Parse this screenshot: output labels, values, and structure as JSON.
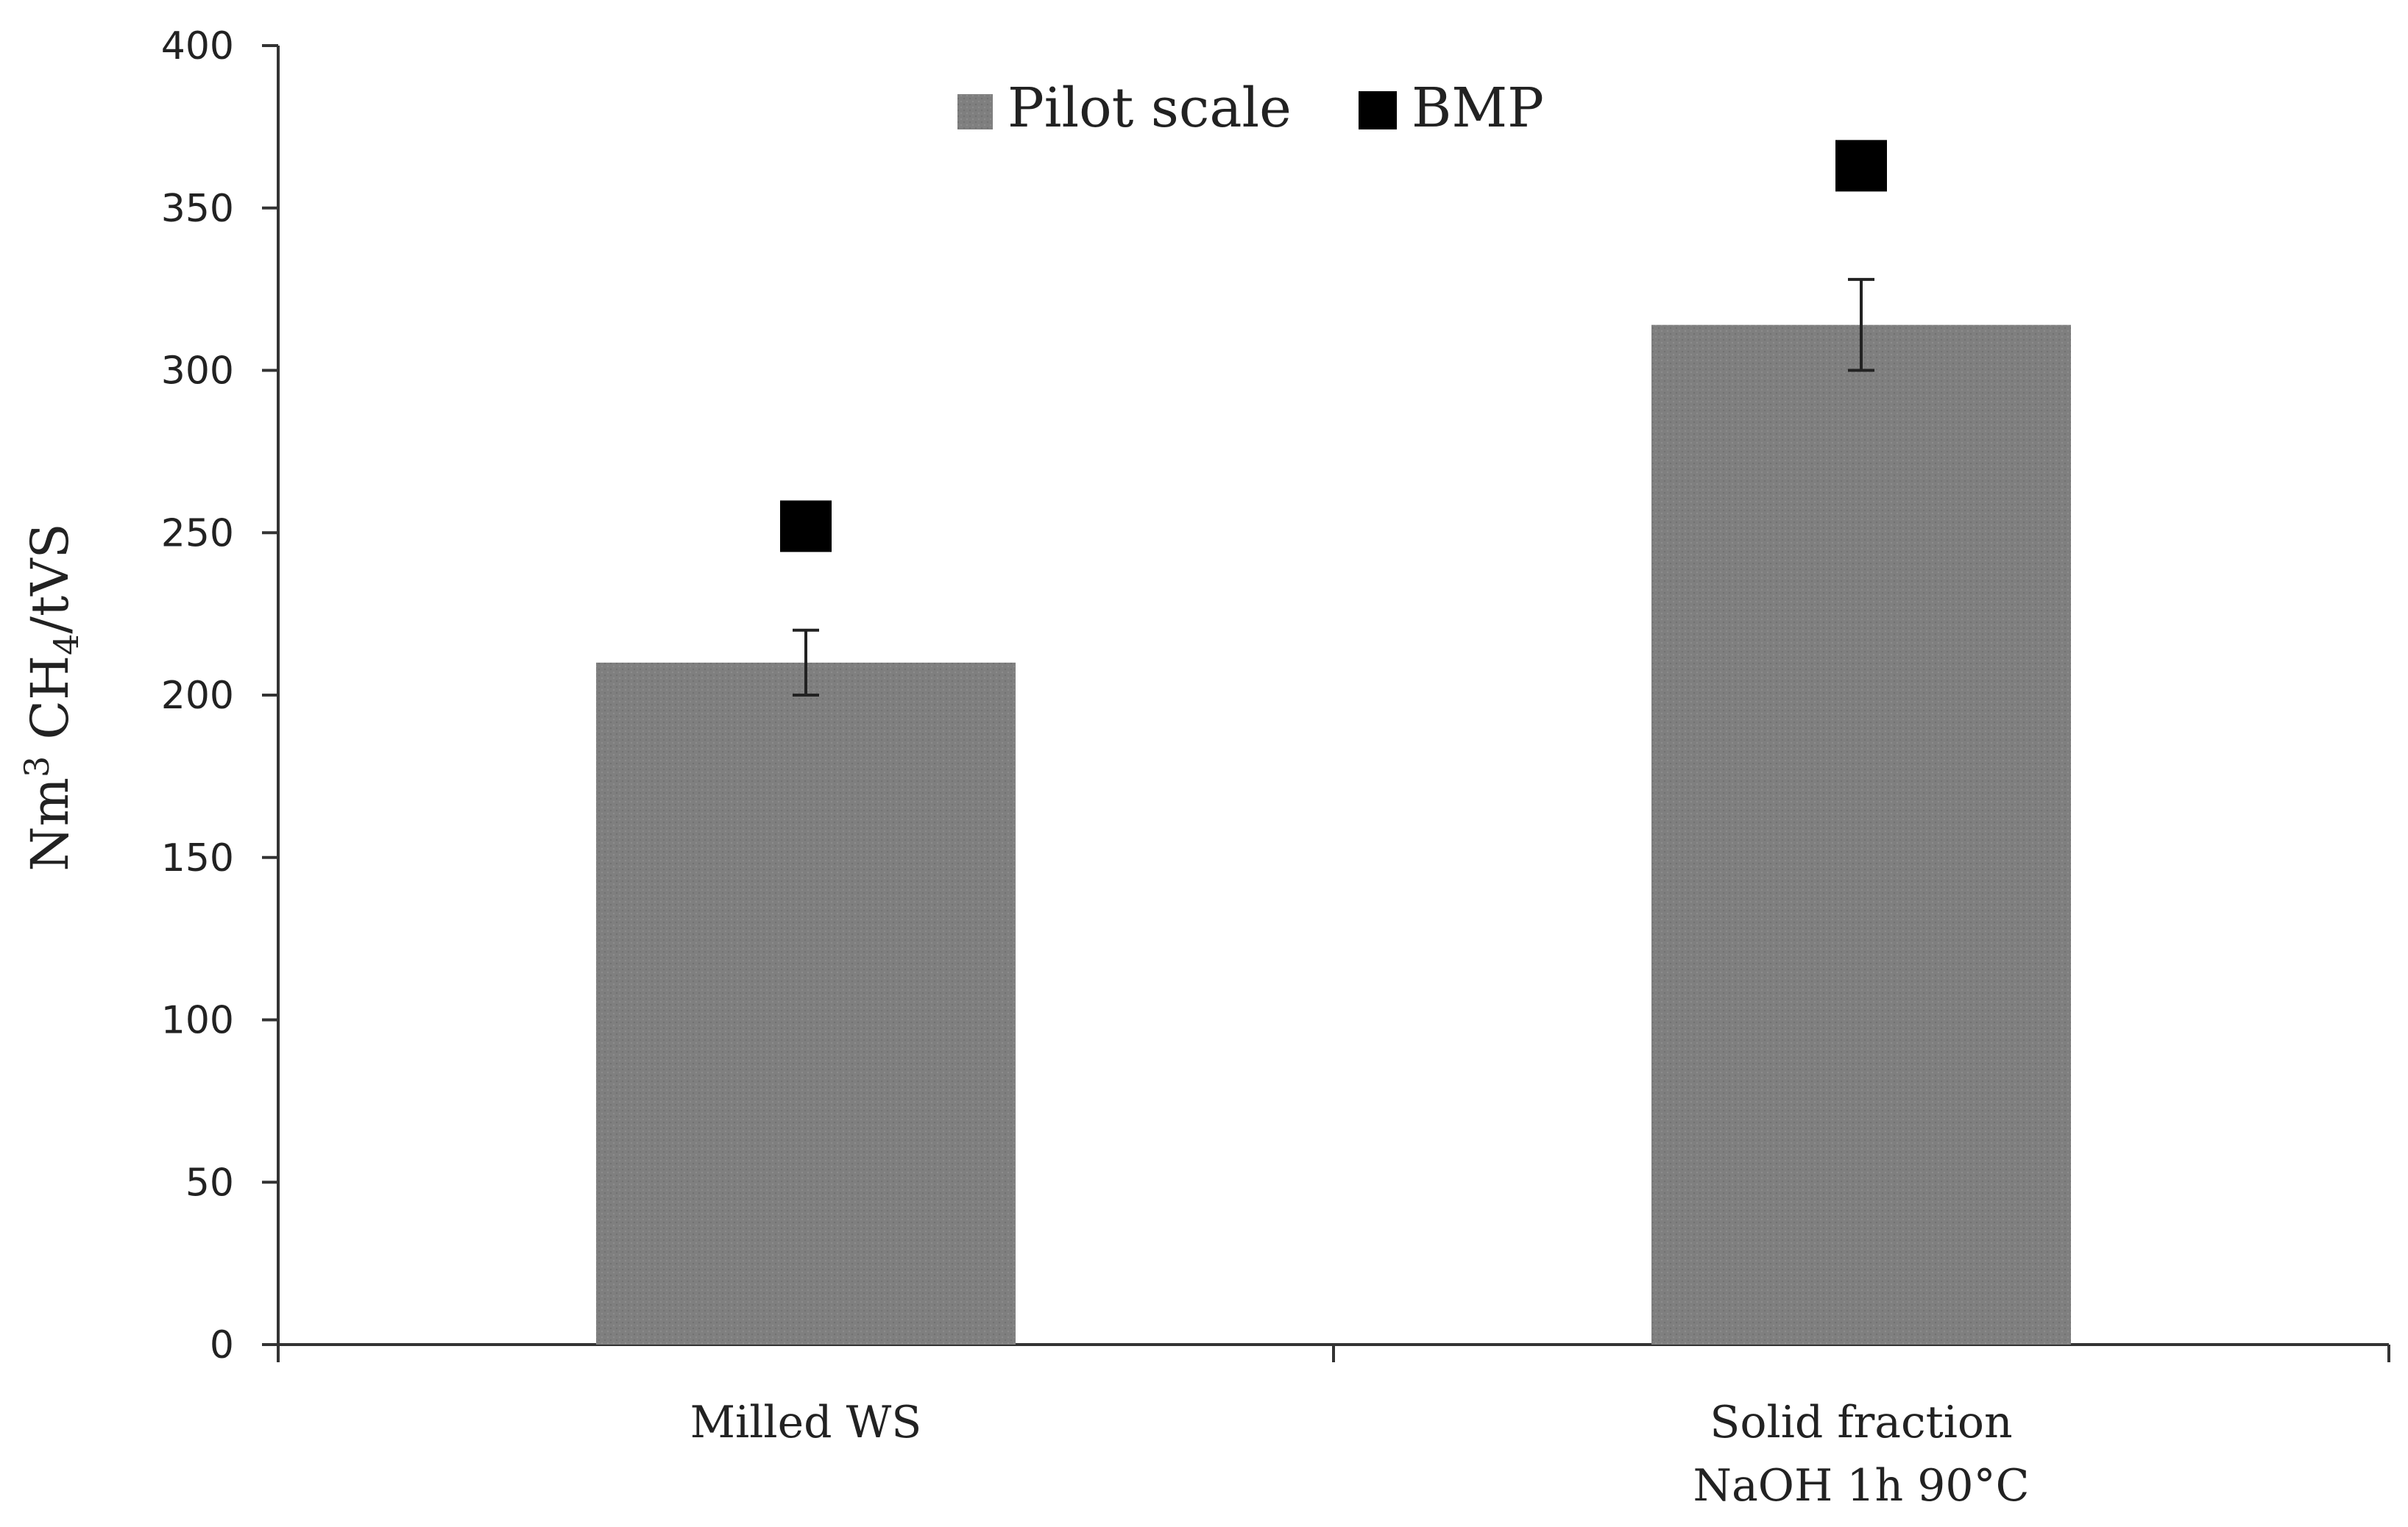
{
  "chart_data": {
    "type": "bar",
    "categories": [
      [
        "Milled WS"
      ],
      [
        "Solid fraction",
        "NaOH 1h 90°C"
      ]
    ],
    "series": [
      {
        "name": "Pilot scale",
        "kind": "bar",
        "values": [
          210,
          314
        ],
        "error": [
          10,
          14
        ],
        "color": "#808080"
      },
      {
        "name": "BMP",
        "kind": "marker",
        "values": [
          252,
          363
        ],
        "color": "#000000"
      }
    ],
    "ylabel": {
      "base": "Nm",
      "sup": "3",
      "mid": " CH",
      "sub": "4",
      "tail": "/tVS"
    },
    "ylim": [
      0,
      400
    ],
    "yticks": [
      0,
      50,
      100,
      150,
      200,
      250,
      300,
      350,
      400
    ],
    "grid": false,
    "legend_position": "top-center"
  }
}
